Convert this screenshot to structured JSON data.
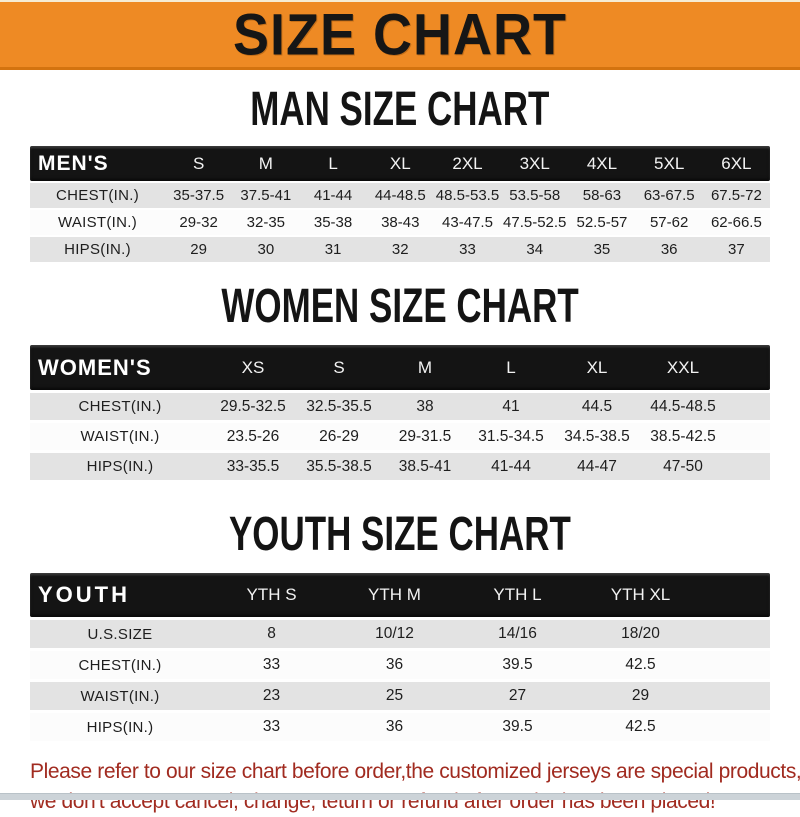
{
  "banner": {
    "title": "SIZE CHART"
  },
  "colors": {
    "banner_orange": "#ee8a24",
    "bar_black": "#141414",
    "row_gray": "#e3e3e3",
    "footer_red": "#a12b20"
  },
  "sections": [
    {
      "heading": "MAN SIZE CHART",
      "label": "MEN'S",
      "columns": [
        "S",
        "M",
        "L",
        "XL",
        "2XL",
        "3XL",
        "4XL",
        "5XL",
        "6XL"
      ],
      "rows": [
        {
          "label": "CHEST(IN.)",
          "values": [
            "35-37.5",
            "37.5-41",
            "41-44",
            "44-48.5",
            "48.5-53.5",
            "53.5-58",
            "58-63",
            "63-67.5",
            "67.5-72"
          ]
        },
        {
          "label": "WAIST(IN.)",
          "values": [
            "29-32",
            "32-35",
            "35-38",
            "38-43",
            "43-47.5",
            "47.5-52.5",
            "52.5-57",
            "57-62",
            "62-66.5"
          ]
        },
        {
          "label": "HIPS(IN.)",
          "values": [
            "29",
            "30",
            "31",
            "32",
            "33",
            "34",
            "35",
            "36",
            "37"
          ]
        }
      ]
    },
    {
      "heading": "WOMEN SIZE CHART",
      "label": "WOMEN'S",
      "columns": [
        "XS",
        "S",
        "M",
        "L",
        "XL",
        "XXL"
      ],
      "rows": [
        {
          "label": "CHEST(IN.)",
          "values": [
            "29.5-32.5",
            "32.5-35.5",
            "38",
            "41",
            "44.5",
            "44.5-48.5"
          ]
        },
        {
          "label": "WAIST(IN.)",
          "values": [
            "23.5-26",
            "26-29",
            "29-31.5",
            "31.5-34.5",
            "34.5-38.5",
            "38.5-42.5"
          ]
        },
        {
          "label": "HIPS(IN.)",
          "values": [
            "33-35.5",
            "35.5-38.5",
            "38.5-41",
            "41-44",
            "44-47",
            "47-50"
          ]
        }
      ]
    },
    {
      "heading": "YOUTH SIZE CHART",
      "label": "YOUTH",
      "columns": [
        "YTH S",
        "YTH M",
        "YTH L",
        "YTH XL"
      ],
      "rows": [
        {
          "label": "U.S.SIZE",
          "values": [
            "8",
            "10/12",
            "14/16",
            "18/20"
          ]
        },
        {
          "label": "CHEST(IN.)",
          "values": [
            "33",
            "36",
            "39.5",
            "42.5"
          ]
        },
        {
          "label": "WAIST(IN.)",
          "values": [
            "23",
            "25",
            "27",
            "29"
          ]
        },
        {
          "label": "HIPS(IN.)",
          "values": [
            "33",
            "36",
            "39.5",
            "42.5"
          ]
        }
      ]
    }
  ],
  "footer": {
    "line1": "Please refer to our size chart before order,the customized jerseys are special products,",
    "line2": "we don't accept cancel, change, teturn or refund after order has been placed!"
  }
}
